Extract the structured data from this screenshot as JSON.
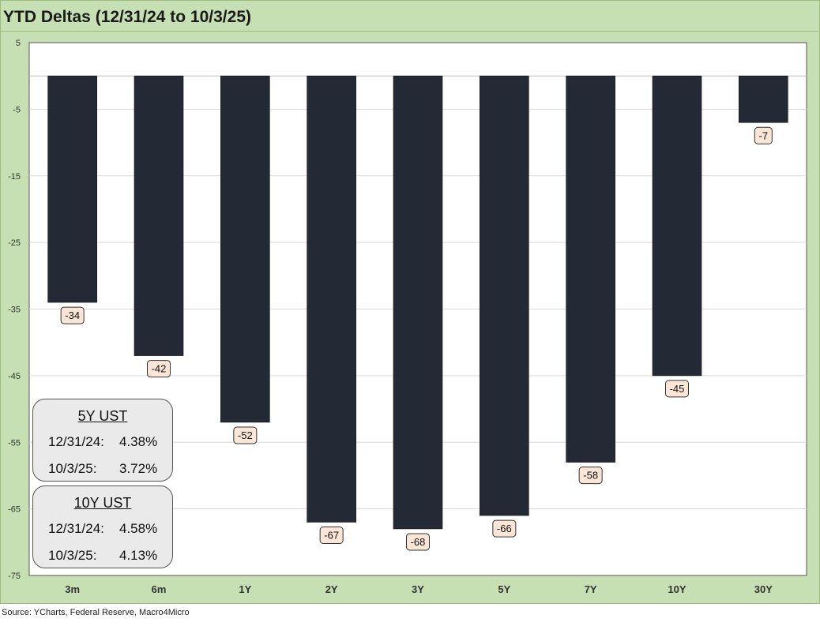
{
  "title": "YTD Deltas (12/31/24 to 10/3/25)",
  "source": "Source: YCharts, Federal Reserve, Macro4Micro",
  "colors": {
    "frame": "#c6e0b4",
    "plot_bg": "#ffffff",
    "bar": "#232a35",
    "label_bg": "#fbe5d6",
    "box_bg": "#eaeaea"
  },
  "chart_data": {
    "type": "bar",
    "categories": [
      "3m",
      "6m",
      "1Y",
      "2Y",
      "3Y",
      "5Y",
      "7Y",
      "10Y",
      "30Y"
    ],
    "values": [
      -34,
      -42,
      -52,
      -67,
      -68,
      -66,
      -58,
      -45,
      -7
    ],
    "data_labels": [
      "-34",
      "-42",
      "-52",
      "-67",
      "-68",
      "-66",
      "-58",
      "-45",
      "-7"
    ],
    "yticks": [
      5,
      -5,
      -15,
      -25,
      -35,
      -45,
      -55,
      -65,
      -75
    ],
    "ylim": [
      -75,
      5
    ],
    "grid": true
  },
  "boxes": [
    {
      "title": "5Y UST",
      "rows": [
        {
          "label": "12/31/24:",
          "value": "4.38%"
        },
        {
          "label": "10/3/25:",
          "value": "3.72%"
        }
      ]
    },
    {
      "title": "10Y UST",
      "rows": [
        {
          "label": "12/31/24:",
          "value": "4.58%"
        },
        {
          "label": "10/3/25:",
          "value": "4.13%"
        }
      ]
    }
  ]
}
